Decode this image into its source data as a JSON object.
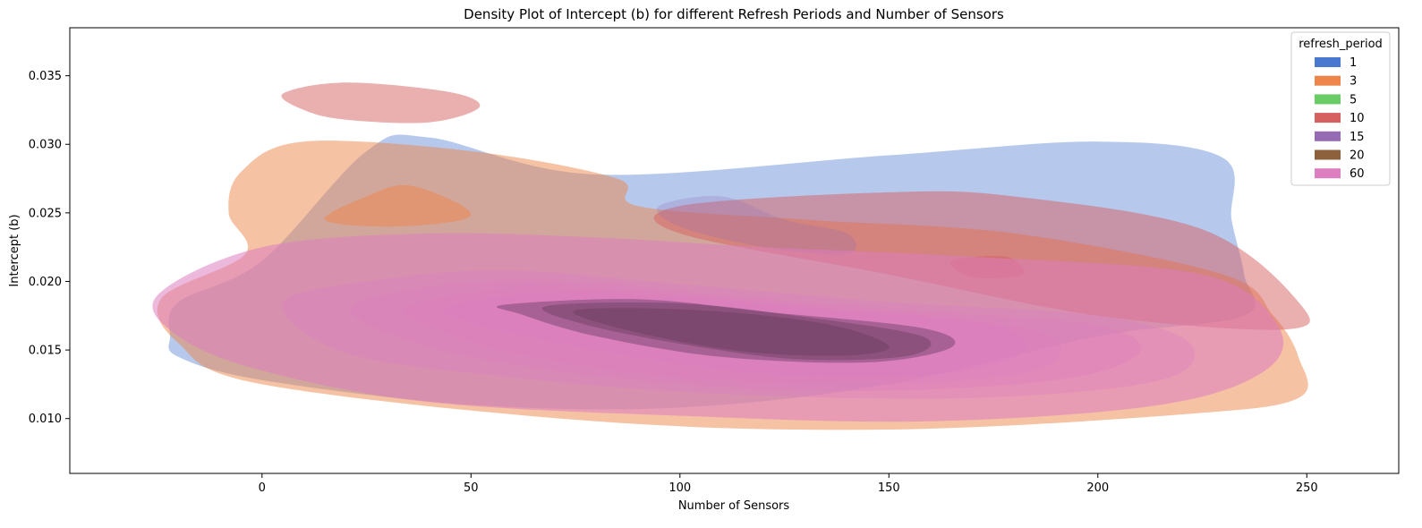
{
  "chart_data": {
    "type": "kde-density",
    "title": "Density Plot of Intercept (b) for different Refresh Periods and Number of Sensors",
    "xlabel": "Number of Sensors",
    "ylabel": "Intercept (b)",
    "xlim": [
      -46,
      272
    ],
    "ylim": [
      0.006,
      0.0385
    ],
    "xticks": [
      0,
      50,
      100,
      150,
      200,
      250
    ],
    "yticks": [
      0.01,
      0.015,
      0.02,
      0.025,
      0.03,
      0.035
    ],
    "ytick_labels": [
      "0.010",
      "0.015",
      "0.020",
      "0.025",
      "0.030",
      "0.035"
    ],
    "grid": false,
    "legend": {
      "title": "refresh_period",
      "placement": "top-right",
      "entries": [
        {
          "label": "1",
          "color": "#4878d0"
        },
        {
          "label": "3",
          "color": "#ee854a"
        },
        {
          "label": "5",
          "color": "#6acc64"
        },
        {
          "label": "10",
          "color": "#d65f5f"
        },
        {
          "label": "15",
          "color": "#956cb4"
        },
        {
          "label": "20",
          "color": "#8c613c"
        },
        {
          "label": "60",
          "color": "#dc7ec0"
        }
      ]
    },
    "series": [
      {
        "name": "1",
        "color": "#4878d0",
        "opacity": 0.4,
        "regions": [
          [
            [
              -22,
              0.016
            ],
            [
              -20,
              0.0185
            ],
            [
              0,
              0.0215
            ],
            [
              25,
              0.0295
            ],
            [
              40,
              0.0305
            ],
            [
              80,
              0.0278
            ],
            [
              150,
              0.0292
            ],
            [
              200,
              0.0302
            ],
            [
              230,
              0.029
            ],
            [
              232,
              0.0245
            ],
            [
              235,
              0.0205
            ],
            [
              235,
              0.0175
            ],
            [
              200,
              0.016
            ],
            [
              150,
              0.0125
            ],
            [
              100,
              0.0108
            ],
            [
              50,
              0.011
            ],
            [
              0,
              0.0128
            ],
            [
              -20,
              0.0145
            ]
          ]
        ]
      },
      {
        "name": "3",
        "color": "#ee854a",
        "opacity": 0.5,
        "regions": [
          [
            [
              -24,
              0.0188
            ],
            [
              -4,
              0.022
            ],
            [
              -8,
              0.025
            ],
            [
              -5,
              0.028
            ],
            [
              10,
              0.0302
            ],
            [
              50,
              0.0295
            ],
            [
              85,
              0.0275
            ],
            [
              90,
              0.0255
            ],
            [
              130,
              0.0245
            ],
            [
              180,
              0.0235
            ],
            [
              230,
              0.0205
            ],
            [
              242,
              0.0175
            ],
            [
              248,
              0.0145
            ],
            [
              248,
              0.0115
            ],
            [
              220,
              0.0103
            ],
            [
              150,
              0.0092
            ],
            [
              80,
              0.0098
            ],
            [
              0,
              0.0125
            ],
            [
              -20,
              0.0155
            ]
          ],
          [
            [
              15,
              0.0245
            ],
            [
              25,
              0.0262
            ],
            [
              35,
              0.027
            ],
            [
              48,
              0.0255
            ],
            [
              48,
              0.0245
            ],
            [
              30,
              0.024
            ]
          ]
        ]
      },
      {
        "name": "10",
        "color": "#d65f5f",
        "opacity": 0.5,
        "regions": [
          [
            [
              5,
              0.0337
            ],
            [
              20,
              0.0345
            ],
            [
              45,
              0.0338
            ],
            [
              52,
              0.0327
            ],
            [
              40,
              0.0316
            ],
            [
              20,
              0.0318
            ],
            [
              10,
              0.0325
            ]
          ],
          [
            [
              100,
              0.0255
            ],
            [
              150,
              0.0265
            ],
            [
              180,
              0.0262
            ],
            [
              225,
              0.0238
            ],
            [
              248,
              0.0185
            ],
            [
              245,
              0.0165
            ],
            [
              200,
              0.0175
            ],
            [
              150,
              0.0205
            ],
            [
              100,
              0.0235
            ]
          ],
          [
            [
              165,
              0.0215
            ],
            [
              178,
              0.0218
            ],
            [
              182,
              0.0205
            ],
            [
              170,
              0.0203
            ]
          ]
        ]
      },
      {
        "name": "15",
        "color": "#956cb4",
        "opacity": 0.25,
        "regions": [
          [
            [
              95,
              0.0255
            ],
            [
              110,
              0.0262
            ],
            [
              125,
              0.0245
            ],
            [
              140,
              0.0235
            ],
            [
              140,
              0.022
            ],
            [
              120,
              0.0225
            ],
            [
              100,
              0.024
            ]
          ]
        ]
      },
      {
        "name": "60",
        "color": "#dc7ec0",
        "opacity": 0.35,
        "levels": [
          [
            [
              -25,
              0.019
            ],
            [
              0,
              0.0225
            ],
            [
              40,
              0.0235
            ],
            [
              80,
              0.0232
            ],
            [
              120,
              0.0225
            ],
            [
              170,
              0.0218
            ],
            [
              225,
              0.0205
            ],
            [
              243,
              0.0168
            ],
            [
              240,
              0.0135
            ],
            [
              215,
              0.011
            ],
            [
              160,
              0.0098
            ],
            [
              100,
              0.0102
            ],
            [
              40,
              0.0112
            ],
            [
              0,
              0.0135
            ],
            [
              -20,
              0.016
            ]
          ],
          [
            [
              5,
              0.0185
            ],
            [
              30,
              0.0202
            ],
            [
              60,
              0.0208
            ],
            [
              100,
              0.0198
            ],
            [
              150,
              0.0185
            ],
            [
              200,
              0.0175
            ],
            [
              222,
              0.0155
            ],
            [
              215,
              0.0128
            ],
            [
              170,
              0.0115
            ],
            [
              110,
              0.0118
            ],
            [
              60,
              0.013
            ],
            [
              20,
              0.0148
            ]
          ],
          [
            [
              22,
              0.0183
            ],
            [
              45,
              0.0198
            ],
            [
              75,
              0.02
            ],
            [
              110,
              0.019
            ],
            [
              160,
              0.0178
            ],
            [
              200,
              0.0168
            ],
            [
              210,
              0.0148
            ],
            [
              190,
              0.0128
            ],
            [
              140,
              0.012
            ],
            [
              90,
              0.0128
            ],
            [
              50,
              0.0145
            ],
            [
              28,
              0.0165
            ]
          ],
          [
            [
              35,
              0.0182
            ],
            [
              60,
              0.0195
            ],
            [
              90,
              0.0193
            ],
            [
              130,
              0.0182
            ],
            [
              170,
              0.0172
            ],
            [
              190,
              0.0158
            ],
            [
              185,
              0.0135
            ],
            [
              150,
              0.0125
            ],
            [
              100,
              0.013
            ],
            [
              60,
              0.0148
            ],
            [
              40,
              0.0168
            ]
          ],
          [
            [
              45,
              0.0182
            ],
            [
              70,
              0.0192
            ],
            [
              100,
              0.0188
            ],
            [
              140,
              0.0178
            ],
            [
              175,
              0.0168
            ],
            [
              182,
              0.0148
            ],
            [
              160,
              0.0132
            ],
            [
              120,
              0.0133
            ],
            [
              80,
              0.015
            ],
            [
              50,
              0.017
            ]
          ],
          [
            [
              50,
              0.0182
            ],
            [
              80,
              0.0189
            ],
            [
              110,
              0.0183
            ],
            [
              150,
              0.0172
            ],
            [
              170,
              0.0163
            ],
            [
              172,
              0.0147
            ],
            [
              150,
              0.0137
            ],
            [
              115,
              0.014
            ],
            [
              80,
              0.0158
            ],
            [
              55,
              0.0173
            ]
          ],
          [
            [
              58,
              0.0183
            ],
            [
              90,
              0.0187
            ],
            [
              120,
              0.0178
            ],
            [
              158,
              0.0166
            ],
            [
              165,
              0.0152
            ],
            [
              145,
              0.0141
            ],
            [
              110,
              0.0145
            ],
            [
              80,
              0.016
            ],
            [
              62,
              0.0176
            ]
          ],
          [
            [
              68,
              0.0182
            ],
            [
              100,
              0.0184
            ],
            [
              130,
              0.0174
            ],
            [
              158,
              0.016
            ],
            [
              155,
              0.0146
            ],
            [
              130,
              0.0143
            ],
            [
              105,
              0.0152
            ],
            [
              78,
              0.0168
            ]
          ],
          [
            [
              75,
              0.0179
            ],
            [
              105,
              0.0179
            ],
            [
              135,
              0.0169
            ],
            [
              150,
              0.0153
            ],
            [
              140,
              0.0146
            ],
            [
              115,
              0.0149
            ],
            [
              88,
              0.0164
            ]
          ]
        ]
      }
    ]
  }
}
